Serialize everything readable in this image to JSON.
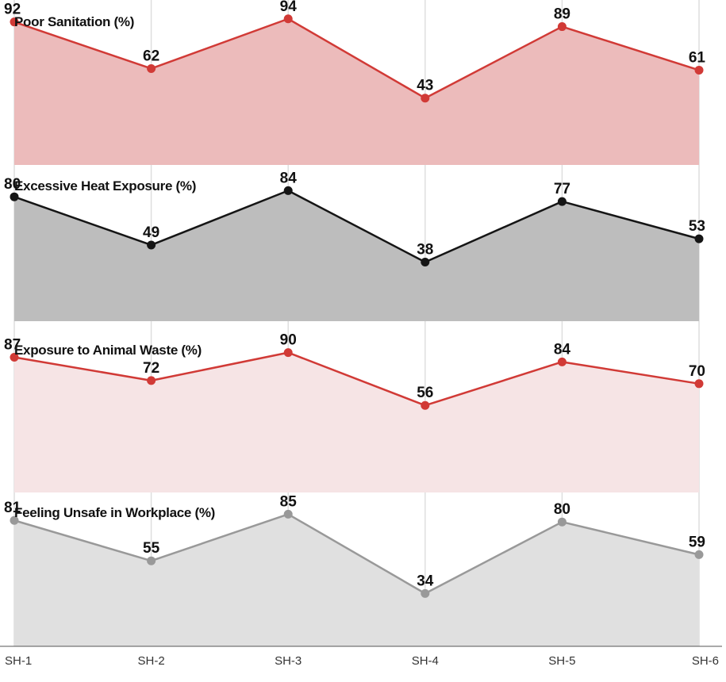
{
  "chart_data": {
    "type": "area",
    "categories": [
      "SH-1",
      "SH-2",
      "SH-3",
      "SH-4",
      "SH-5",
      "SH-6"
    ],
    "grid": true,
    "panels": [
      {
        "title": "Poor Sanitation (%)",
        "values": [
          92,
          62,
          94,
          43,
          89,
          61
        ],
        "line_color": "#d13a36",
        "fill_color": "#ecbbbb"
      },
      {
        "title": "Excessive Heat Exposure (%)",
        "values": [
          80,
          49,
          84,
          38,
          77,
          53
        ],
        "line_color": "#151515",
        "fill_color": "#bdbdbd"
      },
      {
        "title": "Exposure to Animal Waste (%)",
        "values": [
          87,
          72,
          90,
          56,
          84,
          70
        ],
        "line_color": "#d13a36",
        "fill_color": "#f6e4e5"
      },
      {
        "title": "Feeling Unsafe in Workplace (%)",
        "values": [
          81,
          55,
          85,
          34,
          80,
          59
        ],
        "line_color": "#999999",
        "fill_color": "#e0e0e0"
      }
    ]
  }
}
